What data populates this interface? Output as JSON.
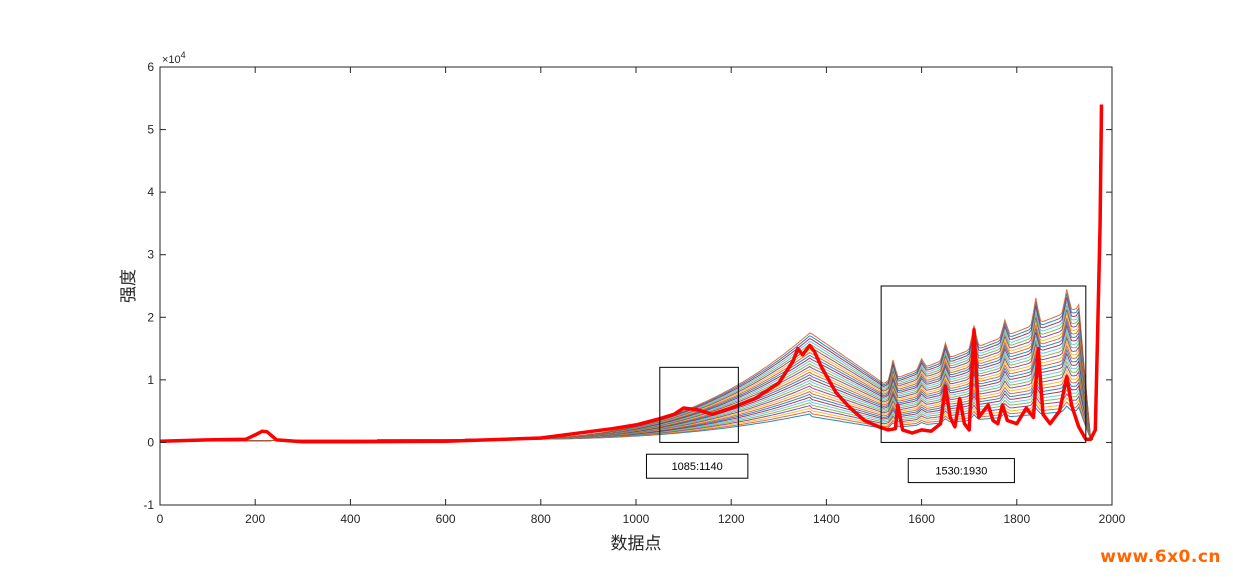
{
  "chart_data": {
    "type": "line",
    "title": "",
    "xlabel": "数据点",
    "ylabel": "强度",
    "y_exponent_label": "×10",
    "y_exponent_power": "4",
    "xlim": [
      0,
      2000
    ],
    "ylim": [
      -1,
      6
    ],
    "y_multiplier": 10000,
    "xticks": [
      0,
      200,
      400,
      600,
      800,
      1000,
      1200,
      1400,
      1600,
      1800,
      2000
    ],
    "yticks": [
      -1,
      0,
      1,
      2,
      3,
      4,
      5,
      6
    ],
    "grid": false,
    "legend": "none",
    "highlight_series": {
      "color": "#ff0000",
      "x": [
        0,
        100,
        180,
        200,
        215,
        225,
        245,
        300,
        400,
        600,
        800,
        950,
        1000,
        1050,
        1080,
        1100,
        1130,
        1160,
        1200,
        1250,
        1300,
        1330,
        1340,
        1350,
        1365,
        1375,
        1390,
        1420,
        1450,
        1480,
        1510,
        1530,
        1545,
        1550,
        1560,
        1580,
        1600,
        1620,
        1640,
        1650,
        1660,
        1670,
        1680,
        1690,
        1700,
        1710,
        1720,
        1740,
        1750,
        1760,
        1770,
        1780,
        1800,
        1820,
        1835,
        1845,
        1855,
        1870,
        1890,
        1905,
        1915,
        1930,
        1945,
        1955,
        1965,
        1970,
        1975,
        1978
      ],
      "y": [
        0.02,
        0.04,
        0.05,
        0.12,
        0.18,
        0.17,
        0.04,
        0.01,
        0.01,
        0.02,
        0.07,
        0.22,
        0.28,
        0.38,
        0.45,
        0.55,
        0.52,
        0.45,
        0.55,
        0.7,
        0.95,
        1.3,
        1.5,
        1.4,
        1.55,
        1.45,
        1.2,
        0.8,
        0.55,
        0.35,
        0.25,
        0.2,
        0.22,
        0.6,
        0.2,
        0.15,
        0.2,
        0.18,
        0.3,
        0.9,
        0.4,
        0.25,
        0.7,
        0.3,
        0.2,
        1.8,
        0.4,
        0.6,
        0.35,
        0.3,
        0.6,
        0.35,
        0.3,
        0.55,
        0.4,
        1.5,
        0.45,
        0.3,
        0.5,
        1.05,
        0.6,
        0.25,
        0.05,
        0.05,
        0.2,
        1.8,
        3.5,
        5.4
      ]
    },
    "annotations": [
      {
        "label": "1085:1140",
        "x1": 1050,
        "x2": 1215,
        "y1": 0,
        "y2": 1.2,
        "label_x": 1085,
        "label_y": -0.38,
        "label_x2": 1235
      },
      {
        "label": "1530:1930",
        "x1": 1515,
        "x2": 1945,
        "y1": 0,
        "y2": 2.5,
        "label_x": 1635,
        "label_y": -0.45,
        "label_x2": 1795
      }
    ]
  },
  "watermark": "www.6x0.cn"
}
